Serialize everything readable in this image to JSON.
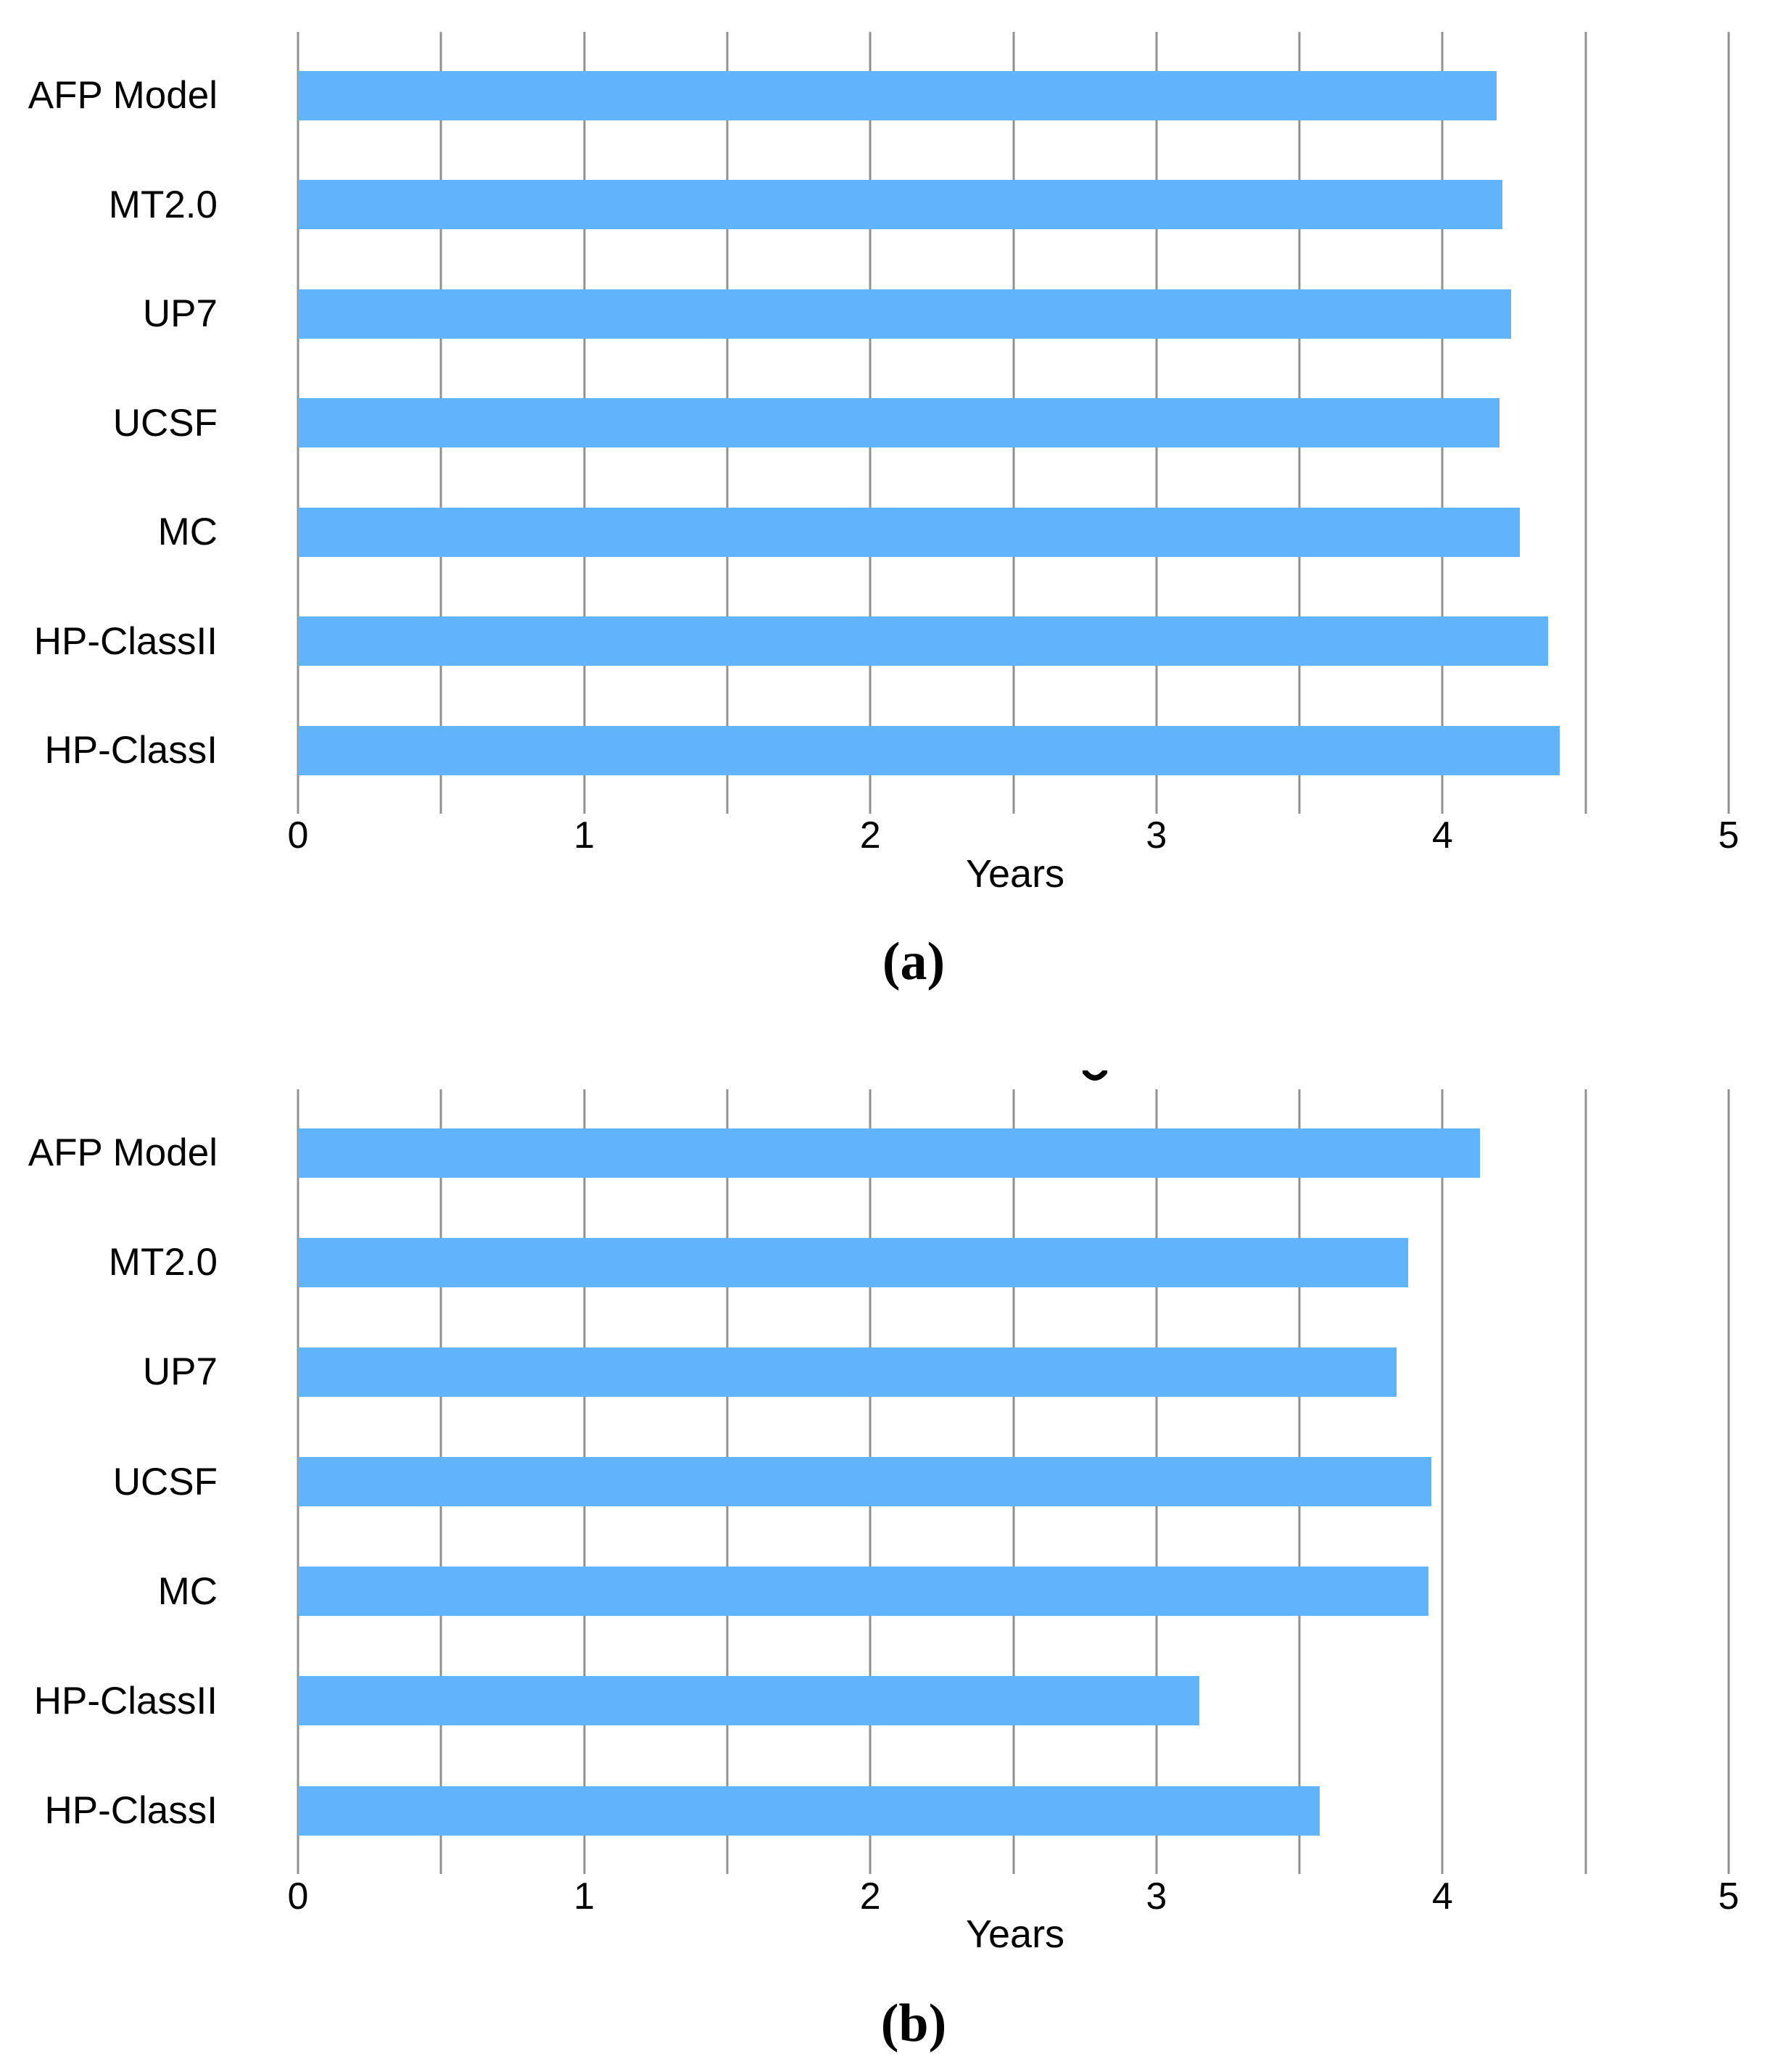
{
  "figure": {
    "captions": {
      "a": "(a)",
      "b": "(b)"
    },
    "partial_glyph": "bottom arc of a cropped letter (descender) visible above panel b",
    "colors": {
      "bar": "#61b4fb",
      "gridline": "#909090",
      "text": "#000000",
      "background": "#ffffff"
    }
  },
  "chart_data": [
    {
      "id": "a",
      "type": "bar",
      "orientation": "horizontal",
      "caption": "(a)",
      "xlabel": "Years",
      "xlim": [
        0,
        5
      ],
      "xticks": [
        0,
        1,
        2,
        3,
        4,
        5
      ],
      "gridline_step": 0.5,
      "grid": "vertical gridlines every 0.5, gray",
      "legend": "none",
      "categories_top_to_bottom": [
        "AFP Model",
        "MT2.0",
        "UP7",
        "UCSF",
        "MC",
        "HP-ClassII",
        "HP-ClassI"
      ],
      "values_years": [
        4.19,
        4.21,
        4.24,
        4.2,
        4.27,
        4.37,
        4.41
      ]
    },
    {
      "id": "b",
      "type": "bar",
      "orientation": "horizontal",
      "caption": "(b)",
      "xlabel": "Years",
      "xlim": [
        0,
        5
      ],
      "xticks": [
        0,
        1,
        2,
        3,
        4,
        5
      ],
      "gridline_step": 0.5,
      "grid": "vertical gridlines every 0.5, gray",
      "legend": "none",
      "categories_top_to_bottom": [
        "AFP Model",
        "MT2.0",
        "UP7",
        "UCSF",
        "MC",
        "HP-ClassII",
        "HP-ClassI"
      ],
      "values_years": [
        4.13,
        3.88,
        3.84,
        3.96,
        3.95,
        3.15,
        3.57
      ]
    }
  ]
}
